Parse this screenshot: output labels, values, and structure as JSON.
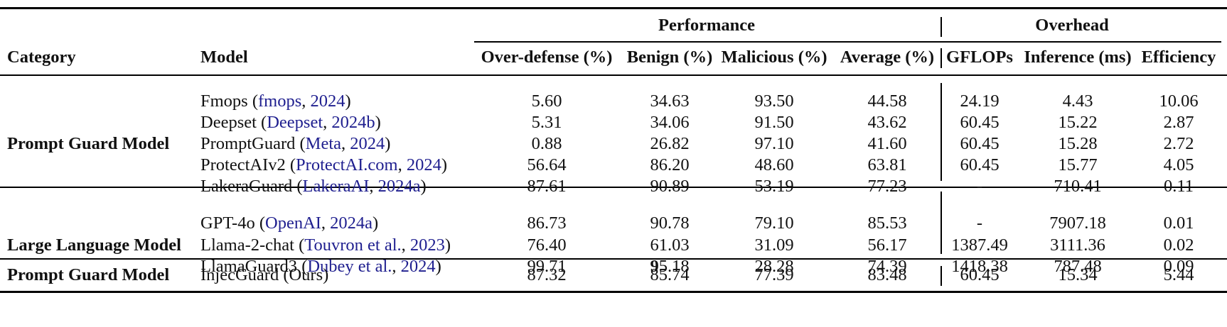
{
  "table": {
    "header": {
      "group_performance": "Performance",
      "group_overhead": "Overhead",
      "category": "Category",
      "model": "Model",
      "columns": [
        "Over-defense (%)",
        "Benign (%)",
        "Malicious (%)",
        "Average (%)",
        "GFLOPs",
        "Inference (ms)",
        "Efficiency"
      ]
    },
    "groups": [
      {
        "category": "Prompt Guard Model",
        "rows": [
          {
            "name": "Fmops",
            "cite_open": " (",
            "cite_author": "fmops",
            "cite_sep": ", ",
            "cite_year": "2024",
            "cite_close": ")",
            "values": [
              "5.60",
              "34.63",
              "93.50",
              "44.58",
              "24.19",
              "4.43",
              "10.06"
            ]
          },
          {
            "name": "Deepset",
            "cite_open": " (",
            "cite_author": "Deepset",
            "cite_sep": ", ",
            "cite_year": "2024b",
            "cite_close": ")",
            "values": [
              "5.31",
              "34.06",
              "91.50",
              "43.62",
              "60.45",
              "15.22",
              "2.87"
            ]
          },
          {
            "name": "PromptGuard",
            "cite_open": " (",
            "cite_author": "Meta",
            "cite_sep": ", ",
            "cite_year": "2024",
            "cite_close": ")",
            "values": [
              "0.88",
              "26.82",
              "97.10",
              "41.60",
              "60.45",
              "15.28",
              "2.72"
            ]
          },
          {
            "name": "ProtectAIv2",
            "cite_open": " (",
            "cite_author": "ProtectAI.com",
            "cite_sep": ", ",
            "cite_year": "2024",
            "cite_close": ")",
            "values": [
              "56.64",
              "86.20",
              "48.60",
              "63.81",
              "60.45",
              "15.77",
              "4.05"
            ]
          },
          {
            "name": "LakeraGuard",
            "cite_open": " (",
            "cite_author": "LakeraAI",
            "cite_sep": ", ",
            "cite_year": "2024a",
            "cite_close": ")",
            "values": [
              "87.61",
              "90.89",
              "53.19",
              "77.23",
              "-",
              "710.41",
              "0.11"
            ]
          }
        ]
      },
      {
        "category": "Large Language Model",
        "rows": [
          {
            "name": "GPT-4o",
            "cite_open": " (",
            "cite_author": "OpenAI",
            "cite_sep": ", ",
            "cite_year": "2024a",
            "cite_close": ")",
            "values": [
              "86.73",
              "90.78",
              "79.10",
              "85.53",
              "-",
              "7907.18",
              "0.01"
            ]
          },
          {
            "name": "Llama-2-chat",
            "cite_open": " (",
            "cite_author": "Touvron et al.",
            "cite_sep": ", ",
            "cite_year": "2023",
            "cite_close": ")",
            "values": [
              "76.40",
              "61.03",
              "31.09",
              "56.17",
              "1387.49",
              "3111.36",
              "0.02"
            ]
          },
          {
            "name": "LlamaGuard3",
            "cite_open": " (",
            "cite_author": "Dubey et al.",
            "cite_sep": ", ",
            "cite_year": "2024",
            "cite_close": ")",
            "values": [
              "99.71",
              "95.18",
              "28.28",
              "74.39",
              "1418.38",
              "787.48",
              "0.09"
            ],
            "benign_bold_part": "9",
            "benign_rest_part": "5.18"
          }
        ]
      },
      {
        "category": "Prompt Guard Model",
        "rows": [
          {
            "name": "InjecGuard (Ours)",
            "values": [
              "87.32",
              "85.74",
              "77.39",
              "83.48",
              "60.45",
              "15.34",
              "5.44"
            ]
          }
        ]
      }
    ]
  }
}
